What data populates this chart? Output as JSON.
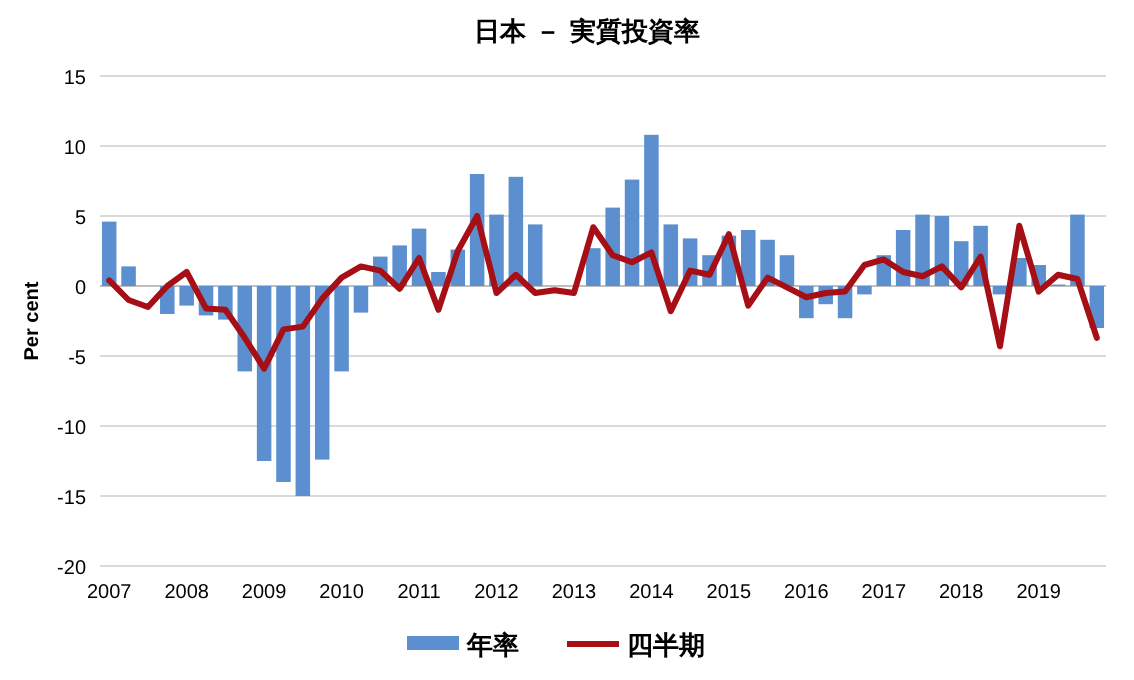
{
  "chart_data": {
    "type": "bar",
    "title": "日本 － 実質投資率",
    "ylabel": "Per cent",
    "categories": [
      "2007",
      null,
      null,
      null,
      "2008",
      null,
      null,
      null,
      "2009",
      null,
      null,
      null,
      "2010",
      null,
      null,
      null,
      "2011",
      null,
      null,
      null,
      "2012",
      null,
      null,
      null,
      "2013",
      null,
      null,
      null,
      "2014",
      null,
      null,
      null,
      "2015",
      null,
      null,
      null,
      "2016",
      null,
      null,
      null,
      "2017",
      null,
      null,
      null,
      "2018",
      null,
      null,
      null,
      "2019",
      null,
      null,
      null
    ],
    "series": [
      {
        "name": "年率",
        "color": "#5b8fd0",
        "values": [
          4.6,
          1.4,
          0,
          -2.0,
          -1.4,
          -2.1,
          -2.4,
          -6.1,
          -12.5,
          -14.0,
          -15.0,
          -12.4,
          -6.1,
          -1.9,
          2.1,
          2.9,
          4.1,
          1.0,
          2.6,
          8.0,
          5.1,
          7.8,
          4.4,
          null,
          null,
          2.7,
          5.6,
          7.6,
          10.8,
          4.4,
          3.4,
          2.2,
          3.6,
          4.0,
          3.3,
          2.2,
          -2.3,
          -1.3,
          -2.3,
          -0.6,
          2.2,
          4.0,
          5.1,
          5.0,
          3.2,
          4.3,
          -0.6,
          2.0,
          1.5,
          0.1,
          5.1,
          -3.0
        ]
      },
      {
        "name": "四半期",
        "type": "line",
        "color": "#a50f15",
        "values": [
          0.4,
          -1.0,
          -1.5,
          0,
          1.0,
          -1.6,
          -1.7,
          -3.7,
          -5.9,
          -3.1,
          -2.9,
          -0.9,
          0.6,
          1.4,
          1.1,
          -0.2,
          2.0,
          -1.7,
          2.5,
          5.0,
          -0.5,
          0.8,
          -0.5,
          -0.3,
          -0.5,
          4.2,
          2.2,
          1.7,
          2.4,
          -1.8,
          1.1,
          0.8,
          3.7,
          -1.4,
          0.6,
          -0.1,
          -0.8,
          -0.5,
          -0.4,
          1.5,
          1.9,
          1.0,
          0.7,
          1.4,
          -0.1,
          2.1,
          -4.3,
          4.3,
          -0.4,
          0.8,
          0.5,
          -3.7
        ]
      }
    ],
    "ylim": [
      -20,
      15
    ],
    "yticks": [
      -20,
      -15,
      -10,
      -5,
      0,
      5,
      10,
      15
    ],
    "grid": "y",
    "legend": "bottom",
    "marker": "none",
    "line_style": "solid"
  }
}
